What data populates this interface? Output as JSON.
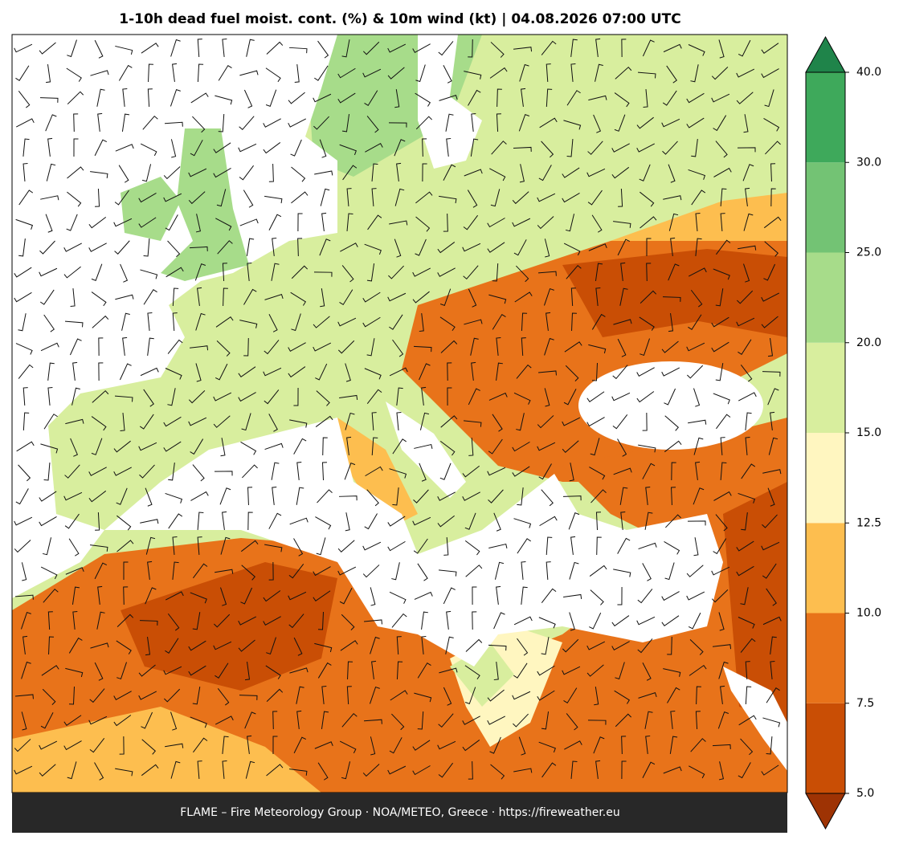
{
  "title": "1-10h dead fuel moist. cont. (%) & 10m wind (kt)  |  04.08.2026 07:00 UTC",
  "colorbar": {
    "ticks": [
      {
        "value": 5,
        "label": "5.0"
      },
      {
        "value": 7.5,
        "label": "7.5"
      },
      {
        "value": 10,
        "label": "10.0"
      },
      {
        "value": 12.5,
        "label": "12.5"
      },
      {
        "value": 15,
        "label": "15.0"
      },
      {
        "value": 20,
        "label": "20.0"
      },
      {
        "value": 25,
        "label": "25.0"
      },
      {
        "value": 30,
        "label": "30.0"
      },
      {
        "value": 40,
        "label": "40.0"
      }
    ],
    "colors": [
      "#9e3304",
      "#c94e05",
      "#e8731a",
      "#fdbe4f",
      "#fff6c0",
      "#d8ee9e",
      "#a7dc8a",
      "#73c374",
      "#3ea95b",
      "#1f844a"
    ],
    "extend": "both"
  },
  "footer": "FLAME – Fire Meteorology Group · NOA/METEO, Greece · https://fireweather.eu"
}
